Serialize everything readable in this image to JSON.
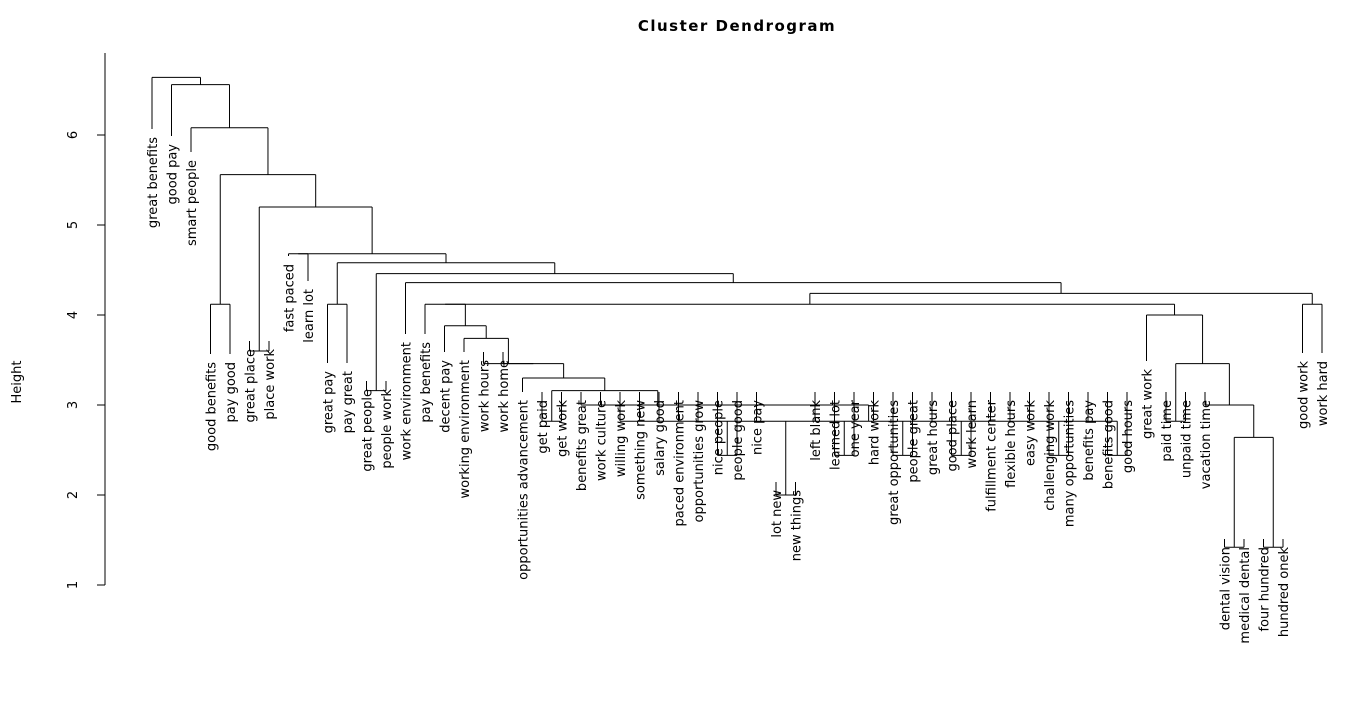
{
  "chart_data": {
    "type": "dendrogram",
    "title": "Cluster Dendrogram",
    "ylabel": "Height",
    "ylim": [
      1,
      6.7
    ],
    "yticks": [
      "1",
      "2",
      "3",
      "4",
      "5",
      "6"
    ],
    "leaves": [
      "great benefits",
      "good pay",
      "smart people",
      "good benefits",
      "pay good",
      "great place",
      "place work",
      "fast paced",
      "learn lot",
      "great pay",
      "pay great",
      "great people",
      "people work",
      "work environment",
      "pay benefits",
      "decent pay",
      "working environment",
      "work hours",
      "work home",
      "opportunities advancement",
      "get paid",
      "get work",
      "benefits great",
      "work culture",
      "willing work",
      "something new",
      "salary good",
      "paced environment",
      "opportunities grow",
      "nice people",
      "people good",
      "nice pay",
      "lot new",
      "new things",
      "left blank",
      "learned lot",
      "one year",
      "hard work",
      "great opportunities",
      "people great",
      "great hours",
      "good place",
      "work learn",
      "fulfillment center",
      "flexible hours",
      "easy work",
      "challenging work",
      "many opportunities",
      "benefits pay",
      "benefits good",
      "good hours",
      "great work",
      "paid time",
      "unpaid time",
      "vacation time",
      "dental vision",
      "medical dental",
      "four hundred",
      "hundred onek",
      "good work",
      "work hard"
    ],
    "merges": [
      {
        "a": "paid time",
        "b": "unpaid time",
        "height": 2.82
      },
      {
        "a": "dental vision",
        "b": "medical dental",
        "height": 1.42
      },
      {
        "a": "four hundred",
        "b": "hundred onek",
        "height": 1.42
      }
    ]
  }
}
